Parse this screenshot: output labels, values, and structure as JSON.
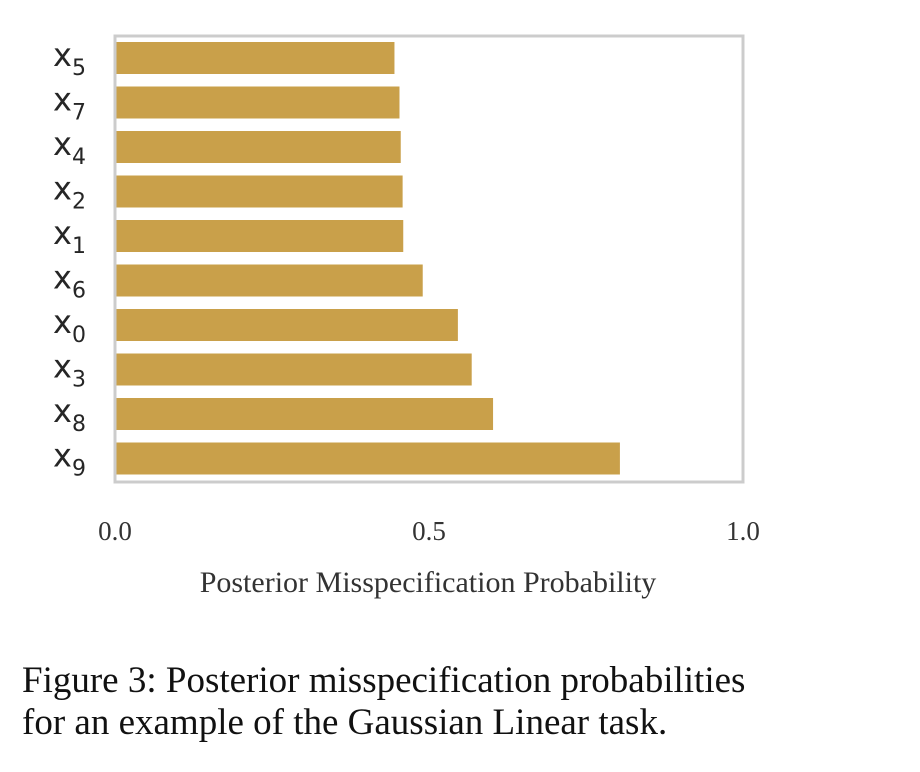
{
  "chart_data": {
    "type": "bar",
    "orientation": "horizontal",
    "categories": [
      "x_5",
      "x_7",
      "x_4",
      "x_2",
      "x_1",
      "x_6",
      "x_0",
      "x_3",
      "x_8",
      "x_9"
    ],
    "category_labels": [
      {
        "base": "x",
        "sub": "5"
      },
      {
        "base": "x",
        "sub": "7"
      },
      {
        "base": "x",
        "sub": "4"
      },
      {
        "base": "x",
        "sub": "2"
      },
      {
        "base": "x",
        "sub": "1"
      },
      {
        "base": "x",
        "sub": "6"
      },
      {
        "base": "x",
        "sub": "0"
      },
      {
        "base": "x",
        "sub": "3"
      },
      {
        "base": "x",
        "sub": "8"
      },
      {
        "base": "x",
        "sub": "9"
      }
    ],
    "values": [
      0.445,
      0.453,
      0.455,
      0.458,
      0.459,
      0.49,
      0.546,
      0.568,
      0.602,
      0.804
    ],
    "title": "",
    "xlabel": "Posterior Misspecification Probability",
    "ylabel": "",
    "xlim": [
      0.0,
      1.0
    ],
    "xticks": [
      0.0,
      0.5,
      1.0
    ],
    "xtick_labels": [
      "0.0",
      "0.5",
      "1.0"
    ],
    "grid": false,
    "bar_color": "#C9A04A",
    "frame_color": "#CCCCCC"
  },
  "caption": {
    "line1": "Figure 3: Posterior misspecification probabilities",
    "line2": "for an example of the Gaussian Linear task."
  }
}
